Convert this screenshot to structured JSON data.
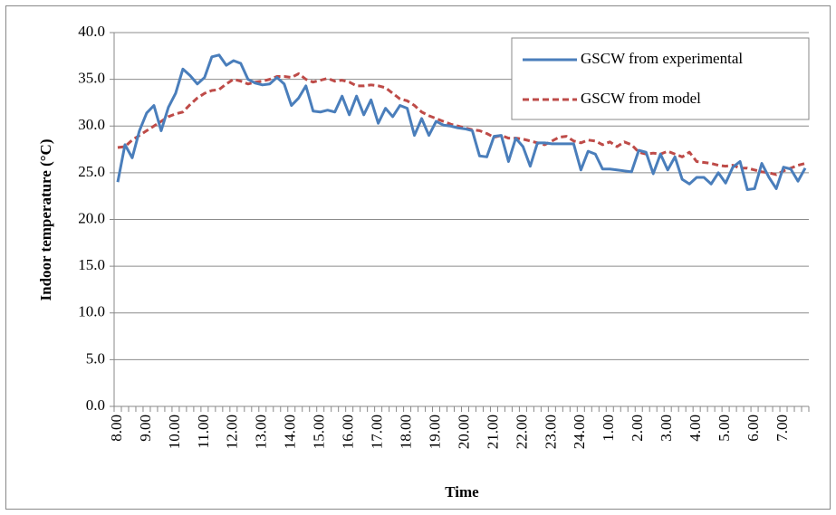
{
  "chart_data": {
    "type": "line",
    "x_label": "Time",
    "y_label": "Indoor temperature (°C)",
    "categories": [
      "8.00",
      null,
      null,
      null,
      "9.00",
      null,
      null,
      null,
      "10.00",
      null,
      null,
      null,
      "11.00",
      null,
      null,
      null,
      "12.00",
      null,
      null,
      null,
      "13.00",
      null,
      null,
      null,
      "14.00",
      null,
      null,
      null,
      "15.00",
      null,
      null,
      null,
      "16.00",
      null,
      null,
      null,
      "17.00",
      null,
      null,
      null,
      "18.00",
      null,
      null,
      null,
      "19.00",
      null,
      null,
      null,
      "20.00",
      null,
      null,
      null,
      "21.00",
      null,
      null,
      null,
      "22.00",
      null,
      null,
      null,
      "23.00",
      null,
      null,
      null,
      "24.00",
      null,
      null,
      null,
      "1.00",
      null,
      null,
      null,
      "2.00",
      null,
      null,
      null,
      "3.00",
      null,
      null,
      null,
      "4.00",
      null,
      null,
      null,
      "5.00",
      null,
      null,
      null,
      "6.00",
      null,
      null,
      null,
      "7.00",
      null,
      null,
      null
    ],
    "series": [
      {
        "name": "GSCW from experimental",
        "color": "#4a7ebb",
        "dashed": false,
        "values": [
          24.0,
          28.0,
          26.6,
          29.5,
          31.4,
          32.2,
          29.5,
          32.0,
          33.5,
          36.1,
          35.4,
          34.5,
          35.2,
          37.4,
          37.6,
          36.5,
          37.0,
          36.7,
          35.0,
          34.6,
          34.4,
          34.5,
          35.2,
          34.5,
          32.2,
          33.0,
          34.3,
          31.6,
          31.5,
          31.7,
          31.5,
          33.2,
          31.2,
          33.2,
          31.2,
          32.8,
          30.3,
          31.9,
          31.0,
          32.2,
          31.9,
          29.0,
          30.8,
          29.0,
          30.5,
          30.1,
          30.0,
          29.8,
          29.7,
          29.5,
          26.8,
          26.7,
          28.9,
          29.0,
          26.2,
          28.7,
          27.8,
          25.7,
          28.2,
          28.2,
          28.1,
          28.1,
          28.1,
          28.1,
          25.3,
          27.3,
          27.0,
          25.4,
          25.4,
          25.3,
          25.2,
          25.1,
          27.4,
          27.2,
          24.9,
          27.0,
          25.3,
          26.7,
          24.3,
          23.8,
          24.5,
          24.5,
          23.8,
          25.0,
          23.9,
          25.6,
          26.2,
          23.2,
          23.3,
          26.0,
          24.5,
          23.3,
          25.6,
          25.4,
          24.1,
          25.5
        ]
      },
      {
        "name": "GSCW from model",
        "color": "#be4b48",
        "dashed": true,
        "values": [
          27.7,
          27.8,
          28.5,
          29.0,
          29.5,
          30.0,
          30.5,
          31.0,
          31.3,
          31.5,
          32.3,
          33.0,
          33.5,
          33.8,
          33.9,
          34.5,
          35.0,
          34.8,
          34.5,
          34.7,
          34.8,
          35.0,
          35.3,
          35.3,
          35.2,
          35.6,
          35.0,
          34.7,
          34.9,
          35.1,
          34.8,
          34.9,
          34.7,
          34.3,
          34.3,
          34.4,
          34.3,
          34.1,
          33.5,
          32.9,
          32.7,
          32.2,
          31.5,
          31.1,
          30.8,
          30.5,
          30.2,
          30.0,
          29.8,
          29.6,
          29.5,
          29.2,
          28.8,
          29.0,
          28.7,
          28.7,
          28.6,
          28.4,
          28.2,
          28.0,
          28.4,
          28.8,
          28.9,
          28.4,
          28.2,
          28.5,
          28.4,
          28.0,
          28.3,
          27.8,
          28.3,
          28.0,
          27.2,
          27.0,
          27.1,
          27.0,
          27.3,
          27.0,
          26.7,
          27.2,
          26.2,
          26.1,
          26.0,
          25.8,
          25.7,
          25.8,
          25.5,
          25.5,
          25.3,
          25.1,
          25.0,
          24.8,
          25.2,
          25.5,
          25.8,
          26.0
        ]
      }
    ],
    "ylim": [
      0,
      40
    ],
    "yticks": [
      {
        "value": 0,
        "label": "0.0"
      },
      {
        "value": 5,
        "label": "5.0"
      },
      {
        "value": 10,
        "label": "10.0"
      },
      {
        "value": 15,
        "label": "15.0"
      },
      {
        "value": 20,
        "label": "20.0"
      },
      {
        "value": 25,
        "label": "25.0"
      },
      {
        "value": 30,
        "label": "30.0"
      },
      {
        "value": 35,
        "label": "35.0"
      },
      {
        "value": 40,
        "label": "40.0"
      }
    ],
    "grid": true,
    "legend": "top-right"
  }
}
